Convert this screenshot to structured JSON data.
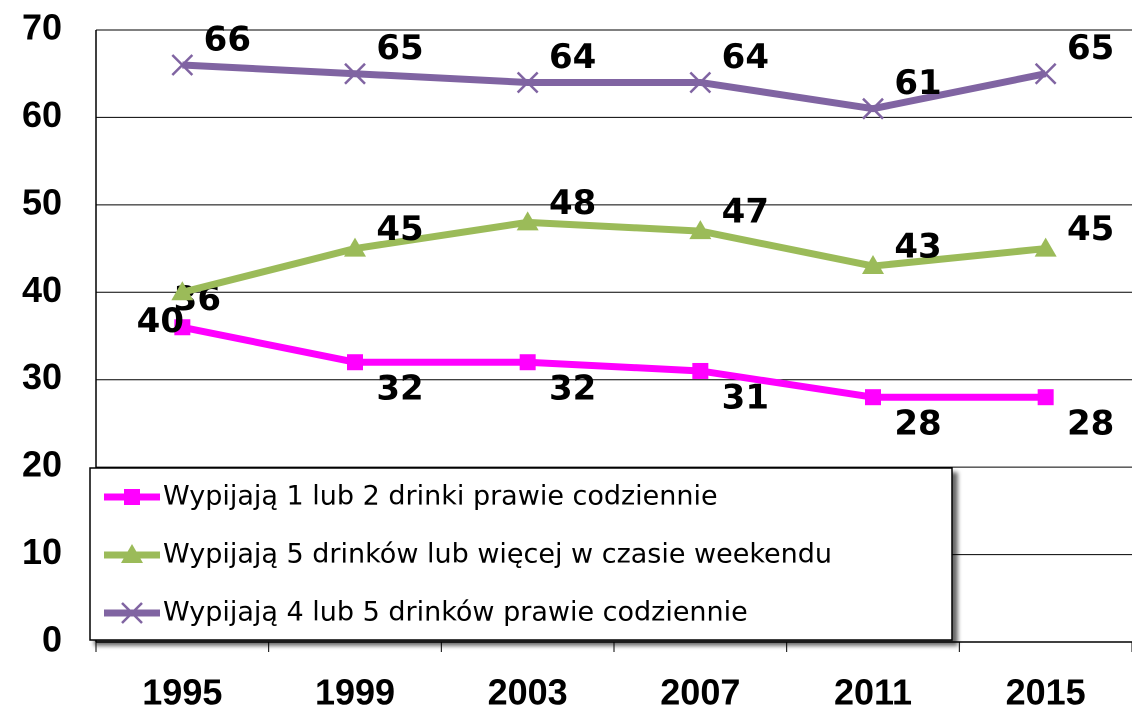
{
  "chart_data": {
    "type": "line",
    "categories": [
      "1995",
      "1999",
      "2003",
      "2007",
      "2011",
      "2015"
    ],
    "series": [
      {
        "name": "Wypijają 1 lub 2 drinki prawie codziennie",
        "color": "#ff00ff",
        "values": [
          36,
          32,
          32,
          31,
          28,
          28
        ]
      },
      {
        "name": "Wypijają 5 drinków lub więcej w czasie weekendu",
        "color": "#9bbb59",
        "values": [
          40,
          45,
          48,
          47,
          43,
          45
        ]
      },
      {
        "name": "Wypijają 4 lub 5 drinków prawie codziennie",
        "color": "#8064a2",
        "values": [
          66,
          65,
          64,
          64,
          61,
          65
        ]
      }
    ],
    "ylim": [
      0,
      70
    ],
    "yticks": [
      0,
      10,
      20,
      30,
      40,
      50,
      60,
      70
    ],
    "grid": true,
    "legend": "lower left"
  }
}
